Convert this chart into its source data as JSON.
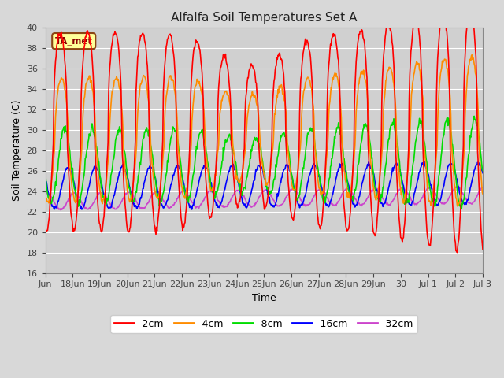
{
  "title": "Alfalfa Soil Temperatures Set A",
  "xlabel": "Time",
  "ylabel": "Soil Temperature (C)",
  "ylim": [
    16,
    40
  ],
  "yticks": [
    16,
    18,
    20,
    22,
    24,
    26,
    28,
    30,
    32,
    34,
    36,
    38,
    40
  ],
  "annotation_label": "TA_met",
  "colors": {
    "-2cm": "#ff0000",
    "-4cm": "#ff8c00",
    "-8cm": "#00dd00",
    "-16cm": "#0000ff",
    "-32cm": "#cc44cc"
  },
  "legend_labels": [
    "-2cm",
    "-4cm",
    "-8cm",
    "-16cm",
    "-32cm"
  ],
  "background_color": "#d8d8d8",
  "plot_bg_color": "#d0d0d0",
  "grid_color": "#ffffff",
  "n_days": 16,
  "start_day": 17,
  "points_per_day": 48,
  "tick_positions": [
    0,
    1,
    2,
    3,
    4,
    5,
    6,
    7,
    8,
    9,
    10,
    11,
    12,
    13,
    14,
    15,
    16
  ],
  "tick_labels": [
    "Jun",
    "18Jun",
    "19Jun",
    "20Jun",
    "21Jun",
    "22Jun",
    "23Jun",
    "24Jun",
    "25Jun",
    "26Jun",
    "27Jun",
    "28Jun",
    "29Jun",
    "30",
    "Jul 1",
    "Jul 2",
    "Jul 3"
  ]
}
